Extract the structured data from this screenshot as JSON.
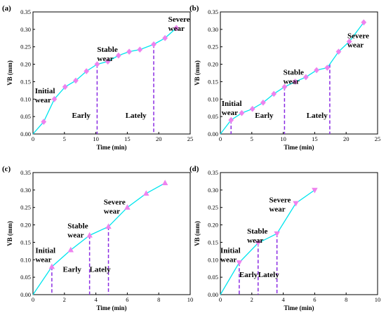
{
  "colors": {
    "line": "#00e5ee",
    "marker": "#ee82ee",
    "divider": "#8a2be2",
    "axis": "#000000"
  },
  "chart_data": [
    {
      "type": "line",
      "panel_label": "(a)",
      "xlabel": "Time (min)",
      "ylabel": "VB (mm)",
      "xlim": [
        0,
        25
      ],
      "ylim": [
        0,
        0.35
      ],
      "xticks": [
        "0",
        "5",
        "10",
        "15",
        "20",
        "25"
      ],
      "yticks": [
        "0.00",
        "0.05",
        "0.10",
        "0.15",
        "0.20",
        "0.25",
        "0.30",
        "0.35"
      ],
      "marker": "diamond",
      "x": [
        0,
        1.7,
        3.4,
        5.1,
        6.8,
        8.5,
        10.2,
        11.9,
        13.6,
        15.3,
        17.0,
        19.2,
        21.0,
        22.8
      ],
      "y": [
        0,
        0.035,
        0.1,
        0.135,
        0.153,
        0.18,
        0.2,
        0.208,
        0.225,
        0.236,
        0.242,
        0.257,
        0.275,
        0.304
      ],
      "dividers": [
        10.2,
        19.2
      ],
      "annotations": [
        {
          "text": [
            "Initial",
            "wear"
          ],
          "x": 0.3,
          "y": 0.117
        },
        {
          "text": [
            "Stable",
            "wear"
          ],
          "x": 10.2,
          "y": 0.235
        },
        {
          "text": [
            "Severe",
            "wear"
          ],
          "x": 21.5,
          "y": 0.322
        },
        {
          "text": [
            "Early"
          ],
          "x": 6.2,
          "y": 0.046
        },
        {
          "text": [
            "Lately"
          ],
          "x": 14.7,
          "y": 0.046
        }
      ]
    },
    {
      "type": "line",
      "panel_label": "(b)",
      "xlabel": "Time (min)",
      "ylabel": "VB (mm)",
      "xlim": [
        0,
        25
      ],
      "ylim": [
        0,
        0.35
      ],
      "xticks": [
        "0",
        "5",
        "10",
        "15",
        "20",
        "25"
      ],
      "yticks": [
        "0.00",
        "0.05",
        "0.10",
        "0.15",
        "0.20",
        "0.25",
        "0.30",
        "0.35"
      ],
      "marker": "diamond",
      "x": [
        0,
        1.7,
        3.4,
        5.1,
        6.8,
        8.5,
        10.2,
        11.9,
        13.6,
        15.3,
        17.0,
        18.8,
        20.5,
        22.8
      ],
      "y": [
        0,
        0.04,
        0.06,
        0.072,
        0.09,
        0.115,
        0.135,
        0.15,
        0.163,
        0.183,
        0.19,
        0.236,
        0.265,
        0.32
      ],
      "dividers": [
        1.7,
        10.2,
        17.4
      ],
      "annotations": [
        {
          "text": [
            "Initial",
            "wear"
          ],
          "x": 0.2,
          "y": 0.08
        },
        {
          "text": [
            "Stable",
            "wear"
          ],
          "x": 10.0,
          "y": 0.17
        },
        {
          "text": [
            "Severe",
            "wear"
          ],
          "x": 20.2,
          "y": 0.275
        },
        {
          "text": [
            "Early"
          ],
          "x": 5.5,
          "y": 0.046
        },
        {
          "text": [
            "Lately"
          ],
          "x": 13.7,
          "y": 0.046
        }
      ]
    },
    {
      "type": "line",
      "panel_label": "(c)",
      "xlabel": "Time (min)",
      "ylabel": "VB (mm)",
      "xlim": [
        0,
        10
      ],
      "ylim": [
        0,
        0.35
      ],
      "xticks": [
        "0",
        "2",
        "4",
        "6",
        "8",
        "10"
      ],
      "yticks": [
        "0.00",
        "0.05",
        "0.10",
        "0.15",
        "0.20",
        "0.25",
        "0.30",
        "0.35"
      ],
      "marker": "triangle-up",
      "x": [
        0,
        1.2,
        2.4,
        3.6,
        4.8,
        6.0,
        7.2,
        8.4
      ],
      "y": [
        0,
        0.08,
        0.128,
        0.17,
        0.195,
        0.25,
        0.29,
        0.32
      ],
      "dividers": [
        1.2,
        3.6,
        4.8
      ],
      "annotations": [
        {
          "text": [
            "Initial",
            "wear"
          ],
          "x": 0.15,
          "y": 0.12
        },
        {
          "text": [
            "Stable",
            "wear"
          ],
          "x": 2.2,
          "y": 0.19
        },
        {
          "text": [
            "Severe",
            "wear"
          ],
          "x": 4.5,
          "y": 0.258
        },
        {
          "text": [
            "Early"
          ],
          "x": 1.9,
          "y": 0.065
        },
        {
          "text": [
            "Lately"
          ],
          "x": 3.6,
          "y": 0.065
        }
      ]
    },
    {
      "type": "line",
      "panel_label": "(d)",
      "xlabel": "Time (min)",
      "ylabel": "VB (mm)",
      "xlim": [
        0,
        10
      ],
      "ylim": [
        0,
        0.35
      ],
      "xticks": [
        "0",
        "2",
        "4",
        "6",
        "8",
        "10"
      ],
      "yticks": [
        "0.00",
        "0.05",
        "0.10",
        "0.15",
        "0.20",
        "0.25",
        "0.30",
        "0.35"
      ],
      "marker": "triangle-down",
      "x": [
        0,
        1.2,
        2.4,
        3.6,
        4.8,
        6.0
      ],
      "y": [
        0,
        0.092,
        0.148,
        0.175,
        0.262,
        0.3
      ],
      "dividers": [
        1.2,
        2.4,
        3.6
      ],
      "annotations": [
        {
          "text": [
            "Initial",
            "wear"
          ],
          "x": 0.0,
          "y": 0.12
        },
        {
          "text": [
            "Stable",
            "wear"
          ],
          "x": 1.7,
          "y": 0.175
        },
        {
          "text": [
            "Severe",
            "wear"
          ],
          "x": 3.1,
          "y": 0.265
        },
        {
          "text": [
            "Early"
          ],
          "x": 1.2,
          "y": 0.05
        },
        {
          "text": [
            "Lately"
          ],
          "x": 2.4,
          "y": 0.05
        }
      ]
    }
  ]
}
